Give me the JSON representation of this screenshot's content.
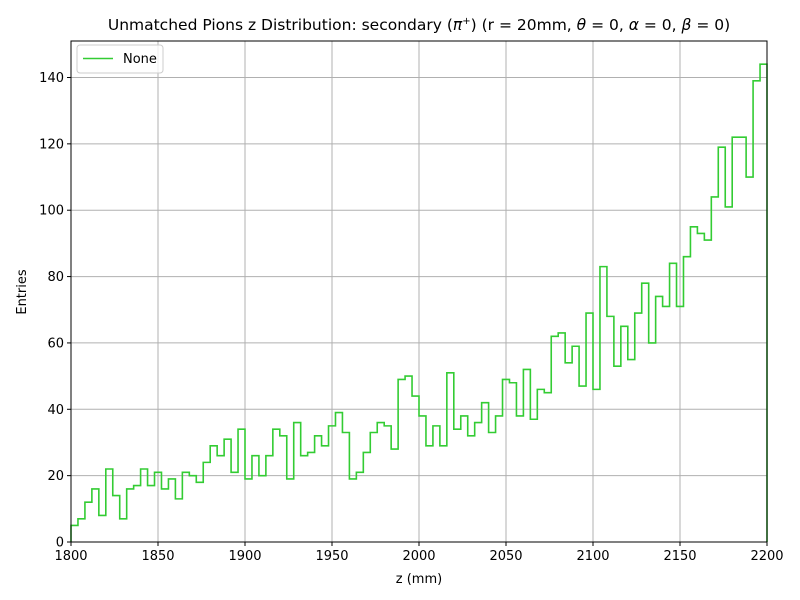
{
  "chart_data": {
    "type": "histogram",
    "title": "Unmatched Pions z Distribution: secondary ($\\pi^+$) (r = 20mm, $\\theta=0, \\alpha=0, \\beta=0$)",
    "title_parts": {
      "lead": "Unmatched Pions z Distribution: secondary (",
      "pi": "π",
      "plus": "+",
      "mid": ") (r = 20mm, ",
      "theta": "θ",
      "eq1": " = 0, ",
      "alpha": "α",
      "eq2": " = 0, ",
      "beta": "β",
      "eq3": " = 0)"
    },
    "xlabel": "z (mm)",
    "ylabel": "Entries",
    "xlim": [
      1800,
      2200
    ],
    "ylim": [
      0,
      151
    ],
    "x_ticks": [
      "1800",
      "1850",
      "1900",
      "1950",
      "2000",
      "2050",
      "2100",
      "2150",
      "2200"
    ],
    "y_ticks": [
      "0",
      "20",
      "40",
      "60",
      "80",
      "100",
      "120",
      "140"
    ],
    "grid": true,
    "legend": {
      "placement": "top-left",
      "entries": [
        "None"
      ]
    },
    "series": [
      {
        "name": "None",
        "color": "#33cc33",
        "bin_width": 4,
        "bin_start": 1800,
        "values": [
          5,
          7,
          12,
          16,
          8,
          22,
          14,
          7,
          16,
          17,
          22,
          17,
          21,
          16,
          19,
          13,
          21,
          20,
          18,
          24,
          29,
          26,
          31,
          21,
          34,
          19,
          26,
          20,
          26,
          34,
          32,
          19,
          36,
          26,
          27,
          32,
          29,
          35,
          39,
          33,
          19,
          21,
          27,
          33,
          36,
          35,
          28,
          49,
          50,
          44,
          38,
          29,
          35,
          29,
          51,
          34,
          38,
          32,
          36,
          42,
          33,
          38,
          49,
          48,
          38,
          52,
          37,
          46,
          45,
          62,
          63,
          54,
          59,
          47,
          69,
          46,
          83,
          68,
          53,
          65,
          55,
          69,
          78,
          60,
          74,
          71,
          84,
          71,
          86,
          95,
          93,
          91,
          104,
          119,
          101,
          122,
          122,
          110,
          139,
          144
        ]
      }
    ]
  }
}
